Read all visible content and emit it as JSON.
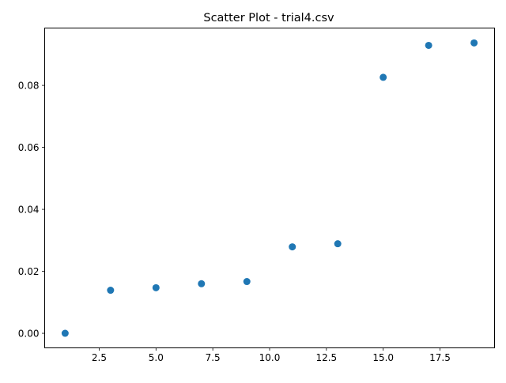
{
  "chart_data": {
    "type": "scatter",
    "title": "Scatter Plot - trial4.csv",
    "xlabel": "",
    "ylabel": "",
    "xlim": [
      0.1,
      19.9
    ],
    "ylim": [
      -0.0047,
      0.0985
    ],
    "grid": false,
    "legend": "none",
    "marker_color": "#1f77b4",
    "x_ticks": [
      2.5,
      5.0,
      7.5,
      10.0,
      12.5,
      15.0,
      17.5
    ],
    "x_tick_labels": [
      "2.5",
      "5.0",
      "7.5",
      "10.0",
      "12.5",
      "15.0",
      "17.5"
    ],
    "y_ticks": [
      0.0,
      0.02,
      0.04,
      0.06,
      0.08
    ],
    "y_tick_labels": [
      "0.00",
      "0.02",
      "0.04",
      "0.06",
      "0.08"
    ],
    "series": [
      {
        "x": [
          1,
          3,
          5,
          7,
          9,
          11,
          13,
          15,
          17,
          19
        ],
        "y": [
          0.0,
          0.0139,
          0.0147,
          0.016,
          0.0167,
          0.0279,
          0.0289,
          0.0826,
          0.0929,
          0.0937
        ]
      }
    ]
  }
}
